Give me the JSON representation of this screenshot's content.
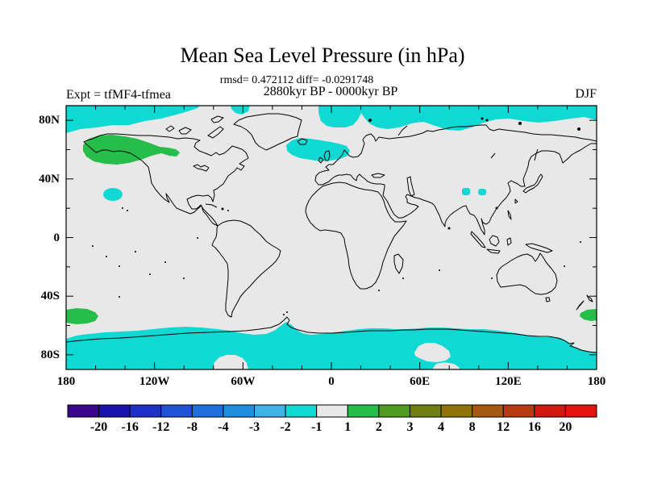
{
  "header": {
    "title": "Mean Sea Level Pressure (in hPa)",
    "stats_line": "rmsd= 0.472112 diff= -0.0291748",
    "period_line": "2880kyr BP - 0000kyr BP",
    "experiment_label": "Expt = tfMF4-tfmea",
    "season_label": "DJF"
  },
  "chart_data": {
    "type": "heatmap",
    "subtype": "filled-contour-world-map",
    "projection": "equirectangular",
    "variable": "Mean Sea Level Pressure difference (hPa)",
    "comparison": "2880kyr BP - 0000kyr BP",
    "season": "DJF",
    "rmsd": 0.472112,
    "diff": -0.0291748,
    "lat_axis": {
      "tick_labels": [
        "80N",
        "40N",
        "0",
        "40S",
        "80S"
      ],
      "range_deg": [
        -90,
        90
      ],
      "minor_tick_deg": 20,
      "major_tick_deg": 40
    },
    "lon_axis": {
      "tick_labels": [
        "180",
        "120W",
        "60W",
        "0",
        "60E",
        "120E",
        "180"
      ],
      "range_deg": [
        -180,
        180
      ],
      "minor_tick_deg": 20,
      "major_tick_deg": 60
    },
    "colorbar": {
      "boundary_labels": [
        "-20",
        "-16",
        "-12",
        "-8",
        "-4",
        "-3",
        "-2",
        "-1",
        "1",
        "2",
        "3",
        "4",
        "8",
        "12",
        "16",
        "20"
      ],
      "cell_colors": [
        "#38078c",
        "#1b12ae",
        "#1e30c8",
        "#2052d6",
        "#1f6ede",
        "#1e8ee0",
        "#3fb2e8",
        "#10d9d4",
        "#e8e8e8",
        "#26bd4a",
        "#4f9c20",
        "#6f7f10",
        "#8f7408",
        "#a55a10",
        "#b8380f",
        "#d11710",
        "#e51310"
      ]
    },
    "map_base_color": "#e8e8e8",
    "coastline_color": "#000000",
    "anomaly_regions": [
      {
        "level": "-2 to -1 hPa",
        "color": "#10d9d4",
        "locations": [
          "Arctic Ocean band along Siberian coast to Bering Strait",
          "Beaufort Sea / western Arctic corner",
          "small spot north of Greenland",
          "Norwegian Sea / North Sea / Scandinavia",
          "two small spots over Tibetan Plateau",
          "small spot in NE subtropical Pacific",
          "circum-Antarctic Southern Ocean band"
        ]
      },
      {
        "level": "1 to 2 hPa",
        "color": "#26bd4a",
        "locations": [
          "Alaska / Gulf of Alaska / Yukon",
          "SE Pacific near 50S at left edge",
          "Southern Ocean east of New Zealand at right edge"
        ]
      }
    ]
  }
}
